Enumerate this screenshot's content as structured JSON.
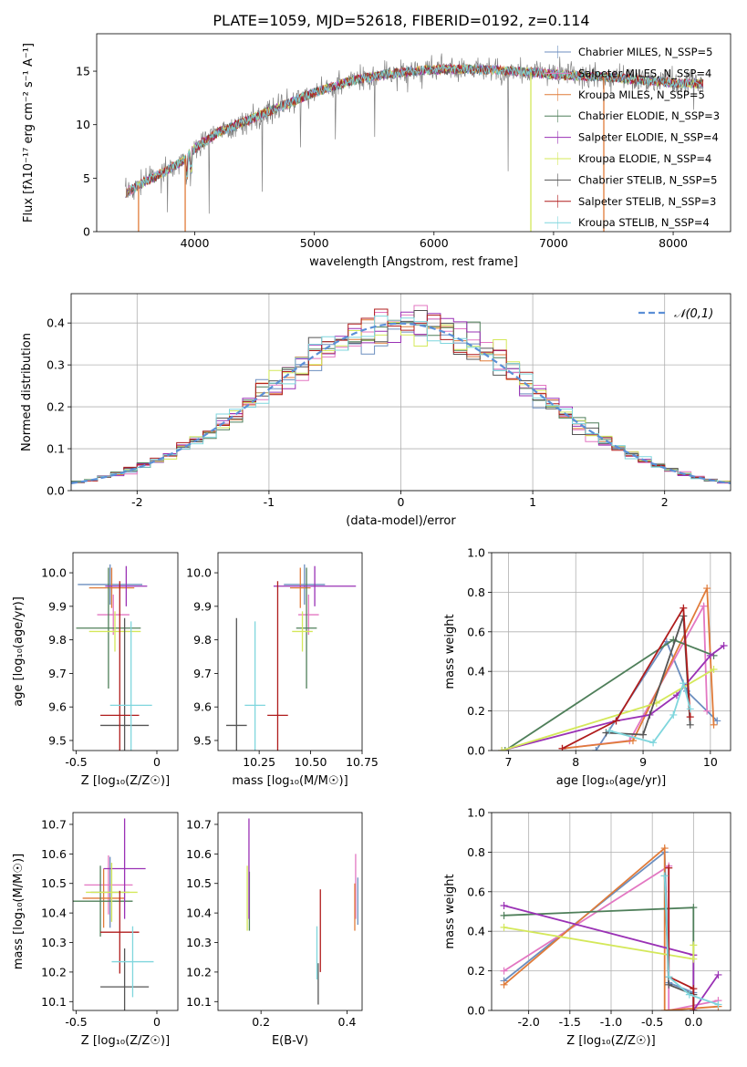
{
  "colors": {
    "Chabrier MILES": "#6c8ebf",
    "Salpeter MILES": "#e377c2",
    "Kroupa MILES": "#e07b39",
    "Chabrier ELODIE": "#4f7f5a",
    "Salpeter ELODIE": "#9a31b5",
    "Kroupa ELODIE": "#d4e85a",
    "Chabrier STELIB": "#555555",
    "Salpeter STELIB": "#b01c1c",
    "Kroupa STELIB": "#7fd6dd",
    "normal_curve": "#5b8fd6",
    "grid": "#b0b0b0"
  },
  "chart_data": [
    {
      "id": "spectrum",
      "type": "line",
      "title": "PLATE=1059, MJD=52618, FIBERID=0192, z=0.114",
      "xlabel": "wavelength [Angstrom, rest frame]",
      "ylabel": "Flux [fλ10⁻¹⁷ erg cm⁻² s⁻¹ A⁻¹]",
      "xlim": [
        3180,
        8480
      ],
      "ylim": [
        0,
        18.5
      ],
      "xticks": [
        4000,
        5000,
        6000,
        7000,
        8000
      ],
      "yticks": [
        0,
        5,
        10,
        15
      ],
      "grid": false,
      "legend_position": "top-right",
      "series": [
        {
          "name": "Chabrier MILES, N_SSP=5"
        },
        {
          "name": "Salpeter MILES, N_SSP=4"
        },
        {
          "name": "Kroupa MILES, N_SSP=5"
        },
        {
          "name": "Chabrier ELODIE, N_SSP=3"
        },
        {
          "name": "Salpeter ELODIE, N_SSP=4"
        },
        {
          "name": "Kroupa ELODIE, N_SSP=4"
        },
        {
          "name": "Chabrier STELIB, N_SSP=5"
        },
        {
          "name": "Salpeter STELIB, N_SSP=3"
        },
        {
          "name": "Kroupa STELIB, N_SSP=4"
        }
      ],
      "continuum": {
        "x": [
          3420,
          3600,
          3750,
          3900,
          4000,
          4200,
          4400,
          4700,
          5000,
          5300,
          5600,
          5900,
          6200,
          6500,
          6800,
          7100,
          7400,
          7700,
          8000,
          8250
        ],
        "y": [
          3.6,
          4.8,
          5.6,
          6.6,
          7.8,
          9.3,
          10.2,
          11.6,
          13.0,
          14.1,
          14.7,
          15.1,
          15.2,
          15.1,
          14.9,
          14.6,
          14.5,
          14.2,
          13.9,
          13.8
        ]
      }
    },
    {
      "id": "residuals",
      "type": "step",
      "xlabel": "(data-model)/error",
      "ylabel": "Normed distribution",
      "xlim": [
        -2.5,
        2.5
      ],
      "ylim": [
        0,
        0.47
      ],
      "xticks": [
        -2,
        -1,
        0,
        1,
        2
      ],
      "yticks": [
        0.0,
        0.1,
        0.2,
        0.3,
        0.4
      ],
      "grid": true,
      "legend": "𝒩(0,1)",
      "legend_position": "top-right",
      "bin_width": 0.1
    },
    {
      "id": "age_vs_Z",
      "type": "errorbar",
      "xlabel": "Z [log₁₀(Z/Z☉)]",
      "ylabel": "age  [log₁₀(age/yr)]",
      "xlim": [
        -0.52,
        0.13
      ],
      "ylim": [
        9.47,
        10.06
      ],
      "xticks": [
        -0.5,
        0.0
      ],
      "yticks": [
        9.5,
        9.6,
        9.7,
        9.8,
        9.9,
        10.0
      ],
      "points": [
        {
          "model": "Chabrier MILES",
          "x": -0.29,
          "xerr": 0.2,
          "y": 9.965,
          "yerr": 0.06
        },
        {
          "model": "Salpeter MILES",
          "x": -0.27,
          "xerr": 0.1,
          "y": 9.875,
          "yerr": 0.06
        },
        {
          "model": "Kroupa MILES",
          "x": -0.28,
          "xerr": 0.14,
          "y": 9.955,
          "yerr": 0.06
        },
        {
          "model": "Chabrier ELODIE",
          "x": -0.3,
          "xerr": 0.2,
          "y": 9.835,
          "yerr": 0.18
        },
        {
          "model": "Salpeter ELODIE",
          "x": -0.19,
          "xerr": 0.13,
          "y": 9.96,
          "yerr": 0.06
        },
        {
          "model": "Kroupa ELODIE",
          "x": -0.26,
          "xerr": 0.16,
          "y": 9.825,
          "yerr": 0.06
        },
        {
          "model": "Chabrier STELIB",
          "x": -0.2,
          "xerr": 0.15,
          "y": 9.545,
          "yerr": 0.32
        },
        {
          "model": "Salpeter STELIB",
          "x": -0.23,
          "xerr": 0.12,
          "y": 9.575,
          "yerr": 0.4
        },
        {
          "model": "Kroupa STELIB",
          "x": -0.16,
          "xerr": 0.13,
          "y": 9.605,
          "yerr": 0.25
        }
      ]
    },
    {
      "id": "age_vs_mass",
      "type": "errorbar",
      "xlabel": "mass [log₁₀(M/M☉)]",
      "ylabel": "",
      "xlim": [
        10.05,
        10.75
      ],
      "ylim": [
        9.47,
        10.06
      ],
      "xticks": [
        10.25,
        10.5,
        10.75
      ],
      "yticks": [
        9.5,
        9.6,
        9.7,
        9.8,
        9.9,
        10.0
      ],
      "points": [
        {
          "model": "Chabrier MILES",
          "x": 10.47,
          "xerr": 0.1,
          "y": 9.965,
          "yerr": 0.06
        },
        {
          "model": "Salpeter MILES",
          "x": 10.49,
          "xerr": 0.05,
          "y": 9.875,
          "yerr": 0.06
        },
        {
          "model": "Kroupa MILES",
          "x": 10.45,
          "xerr": 0.05,
          "y": 9.955,
          "yerr": 0.06
        },
        {
          "model": "Chabrier ELODIE",
          "x": 10.48,
          "xerr": 0.05,
          "y": 9.835,
          "yerr": 0.18
        },
        {
          "model": "Salpeter ELODIE",
          "x": 10.52,
          "xerr": 0.2,
          "y": 9.96,
          "yerr": 0.06
        },
        {
          "model": "Kroupa ELODIE",
          "x": 10.46,
          "xerr": 0.05,
          "y": 9.825,
          "yerr": 0.06
        },
        {
          "model": "Chabrier STELIB",
          "x": 10.14,
          "xerr": 0.05,
          "y": 9.545,
          "yerr": 0.32
        },
        {
          "model": "Salpeter STELIB",
          "x": 10.34,
          "xerr": 0.05,
          "y": 9.575,
          "yerr": 0.4
        },
        {
          "model": "Kroupa STELIB",
          "x": 10.23,
          "xerr": 0.05,
          "y": 9.605,
          "yerr": 0.25
        }
      ]
    },
    {
      "id": "weight_vs_age",
      "type": "line",
      "xlabel": "age  [log₁₀(age/yr)]",
      "ylabel": "mass weight",
      "xlim": [
        6.75,
        10.3
      ],
      "ylim": [
        0,
        1.0
      ],
      "xticks": [
        7,
        8,
        9,
        10
      ],
      "yticks": [
        0.0,
        0.2,
        0.4,
        0.6,
        0.8,
        1.0
      ],
      "grid": true,
      "series": [
        {
          "model": "Chabrier MILES",
          "x": [
            8.3,
            9.35,
            9.65,
            10.1
          ],
          "y": [
            0.0,
            0.55,
            0.3,
            0.15
          ]
        },
        {
          "model": "Salpeter MILES",
          "x": [
            7.8,
            8.8,
            9.9,
            9.95
          ],
          "y": [
            0.01,
            0.05,
            0.73,
            0.2
          ]
        },
        {
          "model": "Kroupa MILES",
          "x": [
            7.8,
            8.85,
            9.95,
            10.05
          ],
          "y": [
            0.01,
            0.05,
            0.82,
            0.13
          ]
        },
        {
          "model": "Chabrier ELODIE",
          "x": [
            6.95,
            9.45,
            10.05
          ],
          "y": [
            0.0,
            0.56,
            0.48
          ]
        },
        {
          "model": "Salpeter ELODIE",
          "x": [
            6.9,
            8.6,
            9.1,
            9.5,
            10.0,
            10.2
          ],
          "y": [
            0.0,
            0.15,
            0.18,
            0.28,
            0.48,
            0.53
          ]
        },
        {
          "model": "Kroupa ELODIE",
          "x": [
            6.9,
            9.2,
            10.05
          ],
          "y": [
            0.0,
            0.24,
            0.41
          ]
        },
        {
          "model": "Chabrier STELIB",
          "x": [
            8.45,
            9.0,
            9.6,
            9.7
          ],
          "y": [
            0.09,
            0.08,
            0.68,
            0.13
          ]
        },
        {
          "model": "Salpeter STELIB",
          "x": [
            7.8,
            8.6,
            9.6,
            9.7
          ],
          "y": [
            0.01,
            0.15,
            0.72,
            0.17
          ]
        },
        {
          "model": "Kroupa STELIB",
          "x": [
            8.5,
            9.15,
            9.45,
            9.6,
            9.7
          ],
          "y": [
            0.1,
            0.04,
            0.18,
            0.34,
            0.21
          ]
        }
      ]
    },
    {
      "id": "mass_vs_Z",
      "type": "errorbar",
      "xlabel": "Z [log₁₀(Z/Z☉)]",
      "ylabel": "mass [log₁₀(M/M☉)]",
      "xlim": [
        -0.52,
        0.13
      ],
      "ylim": [
        10.07,
        10.74
      ],
      "xticks": [
        -0.5,
        0.0
      ],
      "yticks": [
        10.1,
        10.2,
        10.3,
        10.4,
        10.5,
        10.6,
        10.7
      ],
      "points": [
        {
          "model": "Chabrier MILES",
          "x": -0.29,
          "xerr": 0.12,
          "y": 10.47,
          "yerr": 0.12
        },
        {
          "model": "Salpeter MILES",
          "x": -0.3,
          "xerr": 0.15,
          "y": 10.495,
          "yerr": 0.1
        },
        {
          "model": "Kroupa MILES",
          "x": -0.33,
          "xerr": 0.13,
          "y": 10.45,
          "yerr": 0.1
        },
        {
          "model": "Chabrier ELODIE",
          "x": -0.35,
          "xerr": 0.2,
          "y": 10.44,
          "yerr": 0.12
        },
        {
          "model": "Salpeter ELODIE",
          "x": -0.2,
          "xerr": 0.13,
          "y": 10.55,
          "yerr": 0.17
        },
        {
          "model": "Kroupa ELODIE",
          "x": -0.28,
          "xerr": 0.16,
          "y": 10.47,
          "yerr": 0.1
        },
        {
          "model": "Chabrier STELIB",
          "x": -0.2,
          "xerr": 0.15,
          "y": 10.15,
          "yerr": 0.13
        },
        {
          "model": "Salpeter STELIB",
          "x": -0.23,
          "xerr": 0.12,
          "y": 10.335,
          "yerr": 0.14
        },
        {
          "model": "Kroupa STELIB",
          "x": -0.15,
          "xerr": 0.13,
          "y": 10.235,
          "yerr": 0.12
        }
      ]
    },
    {
      "id": "mass_vs_ebv",
      "type": "errorbar",
      "xlabel": "E(B-V)",
      "ylabel": "",
      "xlim": [
        0.1,
        0.435
      ],
      "ylim": [
        10.07,
        10.74
      ],
      "xticks": [
        0.2,
        0.4
      ],
      "yticks": [
        10.1,
        10.2,
        10.3,
        10.4,
        10.5,
        10.6,
        10.7
      ],
      "points": [
        {
          "model": "Chabrier MILES",
          "x": 0.425,
          "xerr": 0.0,
          "y": 10.44,
          "yerr": 0.08
        },
        {
          "model": "Salpeter MILES",
          "x": 0.42,
          "xerr": 0.0,
          "y": 10.49,
          "yerr": 0.11
        },
        {
          "model": "Kroupa MILES",
          "x": 0.418,
          "xerr": 0.0,
          "y": 10.42,
          "yerr": 0.08
        },
        {
          "model": "Chabrier ELODIE",
          "x": 0.173,
          "xerr": 0.0,
          "y": 10.44,
          "yerr": 0.1
        },
        {
          "model": "Salpeter ELODIE",
          "x": 0.172,
          "xerr": 0.0,
          "y": 10.55,
          "yerr": 0.17
        },
        {
          "model": "Kroupa ELODIE",
          "x": 0.168,
          "xerr": 0.0,
          "y": 10.45,
          "yerr": 0.11
        },
        {
          "model": "Chabrier STELIB",
          "x": 0.333,
          "xerr": 0.0,
          "y": 10.16,
          "yerr": 0.07
        },
        {
          "model": "Salpeter STELIB",
          "x": 0.338,
          "xerr": 0.0,
          "y": 10.34,
          "yerr": 0.14
        },
        {
          "model": "Kroupa STELIB",
          "x": 0.33,
          "xerr": 0.0,
          "y": 10.265,
          "yerr": 0.09
        }
      ]
    },
    {
      "id": "weight_vs_Z",
      "type": "line",
      "xlabel": "Z [log₁₀(Z/Z☉)]",
      "ylabel": "mass weight",
      "xlim": [
        -2.45,
        0.45
      ],
      "ylim": [
        0,
        1.0
      ],
      "xticks": [
        -2.0,
        -1.5,
        -1.0,
        -0.5,
        0.0
      ],
      "yticks": [
        0.0,
        0.2,
        0.4,
        0.6,
        0.8,
        1.0
      ],
      "grid": true,
      "series": [
        {
          "model": "Chabrier MILES",
          "x": [
            -2.3,
            -0.35,
            -0.3,
            0.0
          ],
          "y": [
            0.15,
            0.8,
            0.14,
            0.09
          ]
        },
        {
          "model": "Salpeter MILES",
          "x": [
            -2.3,
            -0.3,
            -0.3,
            0.3
          ],
          "y": [
            0.2,
            0.73,
            0.0,
            0.05
          ]
        },
        {
          "model": "Kroupa MILES",
          "x": [
            -2.3,
            -0.35,
            -0.35,
            0.3
          ],
          "y": [
            0.13,
            0.82,
            0.0,
            0.02
          ]
        },
        {
          "model": "Chabrier ELODIE",
          "x": [
            -2.3,
            0.0,
            0.0
          ],
          "y": [
            0.48,
            0.52,
            0.0
          ]
        },
        {
          "model": "Salpeter ELODIE",
          "x": [
            -2.3,
            0.0,
            0.0,
            0.3
          ],
          "y": [
            0.53,
            0.28,
            0.0,
            0.18
          ]
        },
        {
          "model": "Kroupa ELODIE",
          "x": [
            -2.3,
            0.0,
            0.0
          ],
          "y": [
            0.42,
            0.26,
            0.33
          ]
        },
        {
          "model": "Chabrier STELIB",
          "x": [
            -0.35,
            -0.3,
            0.0,
            0.0
          ],
          "y": [
            0.68,
            0.13,
            0.08,
            0.0
          ]
        },
        {
          "model": "Salpeter STELIB",
          "x": [
            -0.3,
            -0.3,
            0.0,
            0.0
          ],
          "y": [
            0.72,
            0.17,
            0.11,
            0.0
          ]
        },
        {
          "model": "Kroupa STELIB",
          "x": [
            -0.35,
            -0.3,
            -0.05,
            0.3
          ],
          "y": [
            0.68,
            0.17,
            0.08,
            0.03
          ]
        }
      ]
    }
  ]
}
